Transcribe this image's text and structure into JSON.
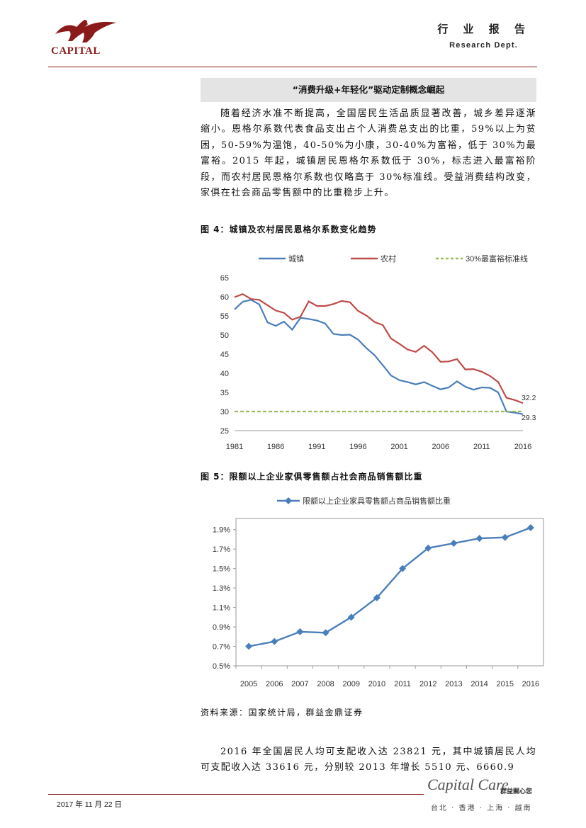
{
  "header": {
    "logo_text": "CAPITAL",
    "title": "行 业 报 告",
    "subtitle": "Research Dept."
  },
  "section": {
    "title": "“消费升级+年轻化”驱动定制概念崛起",
    "paragraph": "随着经济水准不断提高，全国居民生活品质显著改善，城乡差异逐渐缩小。恩格尔系数代表食品支出占个人消费总支出的比重，59%以上为贫困，50-59%为温饱，40-50%为小康，30-40%为富裕，低于 30%为最富裕。2015 年起，城镇居民恩格尔系数低于 30%，标志进入最富裕阶段，而农村居民恩格尔系数也仅略高于 30%标准线。受益消费结构改变，家俱在社会商品零售额中的比重稳步上升。"
  },
  "figure4": {
    "caption": "图 4：城镇及农村居民恩格尔系数变化趋势"
  },
  "figure5": {
    "caption": "图 5：限额以上企业家俱零售额占社会商品销售额比重"
  },
  "source_note": "资料来源：国家统计局，群益金鼎证券",
  "closing_paragraph": "2016 年全国居民人均可支配收入达 23821 元，其中城镇居民人均可支配收入达 33616 元，分别较 2013 年增长 5510 元、6660.9",
  "footer": {
    "date": "2017 年 11 月 22 日",
    "brand": "Capital Care",
    "brand_cn": "群益關心您",
    "locations": "台北 · 香港 · 上海 · 越南"
  },
  "colors": {
    "brand_red": "#8b1a1a",
    "urban": "#4a7ebb",
    "rural": "#be4b48",
    "threshold": "#9bbb59",
    "furniture": "#4a7ebb"
  },
  "chart_data": [
    {
      "type": "line",
      "title": "",
      "x": [
        1981,
        1982,
        1983,
        1984,
        1985,
        1986,
        1987,
        1988,
        1989,
        1990,
        1991,
        1992,
        1993,
        1994,
        1995,
        1996,
        1997,
        1998,
        1999,
        2000,
        2001,
        2002,
        2003,
        2004,
        2005,
        2006,
        2007,
        2008,
        2009,
        2010,
        2011,
        2012,
        2013,
        2014,
        2015,
        2016
      ],
      "x_ticks": [
        "1981",
        "1986",
        "1991",
        "1996",
        "2001",
        "2006",
        "2011",
        "2016"
      ],
      "ylim": [
        25,
        65
      ],
      "y_ticks": [
        "25",
        "30",
        "35",
        "40",
        "45",
        "50",
        "55",
        "60",
        "65"
      ],
      "legend_position": "top",
      "series": [
        {
          "name": "城镇",
          "color": "#4a7ebb",
          "values": [
            56.7,
            58.7,
            59.2,
            58.0,
            53.3,
            52.4,
            53.5,
            51.4,
            54.5,
            54.2,
            53.8,
            53.0,
            50.3,
            50.0,
            50.1,
            48.8,
            46.6,
            44.7,
            42.1,
            39.4,
            38.2,
            37.7,
            37.1,
            37.7,
            36.7,
            35.8,
            36.3,
            37.9,
            36.5,
            35.7,
            36.3,
            36.2,
            35.0,
            30.0,
            29.7,
            29.3
          ],
          "end_label": "29.3"
        },
        {
          "name": "农村",
          "color": "#be4b48",
          "values": [
            59.9,
            60.7,
            59.4,
            59.2,
            57.8,
            56.4,
            55.8,
            54.0,
            54.8,
            58.8,
            57.6,
            57.6,
            58.1,
            58.9,
            58.6,
            56.3,
            55.1,
            53.4,
            52.6,
            49.1,
            47.7,
            46.2,
            45.6,
            47.2,
            45.5,
            43.0,
            43.1,
            43.7,
            41.0,
            41.1,
            40.4,
            39.3,
            37.7,
            33.6,
            33.0,
            32.2
          ],
          "end_label": "32.2"
        },
        {
          "name": "30%最富裕标准线",
          "color": "#9bbb59",
          "dashed": true,
          "values": [
            30,
            30,
            30,
            30,
            30,
            30,
            30,
            30,
            30,
            30,
            30,
            30,
            30,
            30,
            30,
            30,
            30,
            30,
            30,
            30,
            30,
            30,
            30,
            30,
            30,
            30,
            30,
            30,
            30,
            30,
            30,
            30,
            30,
            30,
            30,
            30
          ]
        }
      ]
    },
    {
      "type": "line",
      "title": "",
      "categories": [
        "2005",
        "2006",
        "2007",
        "2008",
        "2009",
        "2010",
        "2011",
        "2012",
        "2013",
        "2014",
        "2015",
        "2016"
      ],
      "ylim": [
        0.5,
        2.0
      ],
      "y_ticks": [
        "0.5%",
        "0.7%",
        "0.9%",
        "1.1%",
        "1.3%",
        "1.5%",
        "1.7%",
        "1.9%"
      ],
      "legend_position": "top",
      "series": [
        {
          "name": "限额以上企业家具零售额占商品销售额比重",
          "color": "#4a7ebb",
          "marker": "diamond",
          "values": [
            0.7,
            0.75,
            0.85,
            0.84,
            1.0,
            1.2,
            1.5,
            1.71,
            1.76,
            1.81,
            1.82,
            1.92
          ]
        }
      ]
    }
  ]
}
